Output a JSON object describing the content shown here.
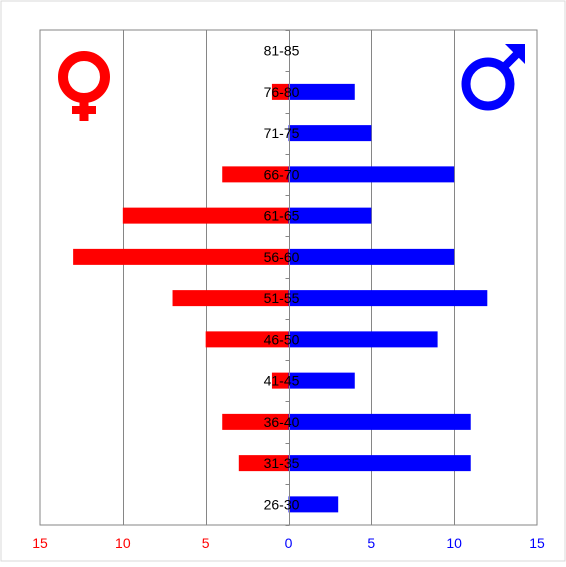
{
  "chart_data": {
    "type": "bar",
    "orientation": "horizontal",
    "layout": "population-pyramid",
    "categories": [
      "26-30",
      "31-35",
      "36-40",
      "41-45",
      "46-50",
      "51-55",
      "56-60",
      "61-65",
      "66-70",
      "71-75",
      "76-80",
      "81-85"
    ],
    "series": [
      {
        "key": "female",
        "values": [
          0,
          3,
          4,
          1,
          5,
          7,
          13,
          10,
          4,
          0,
          1,
          0
        ],
        "color": "#ff0000",
        "direction": "left"
      },
      {
        "key": "male",
        "values": [
          3,
          11,
          11,
          4,
          9,
          12,
          10,
          5,
          10,
          5,
          4,
          0
        ],
        "color": "#0000ff",
        "direction": "right"
      }
    ],
    "xlim": [
      -15,
      15
    ],
    "x_ticks": [
      {
        "value": -15,
        "label": "15",
        "color": "#ff0000"
      },
      {
        "value": -10,
        "label": "10",
        "color": "#ff0000"
      },
      {
        "value": -5,
        "label": "5",
        "color": "#ff0000"
      },
      {
        "value": 0,
        "label": "0",
        "color": "#0000ff"
      },
      {
        "value": 5,
        "label": "5",
        "color": "#0000ff"
      },
      {
        "value": 10,
        "label": "10",
        "color": "#0000ff"
      },
      {
        "value": 15,
        "label": "15",
        "color": "#0000ff"
      }
    ],
    "title": "",
    "xlabel": "",
    "ylabel": "",
    "grid": "vertical",
    "icons": [
      {
        "name": "female-symbol-icon",
        "placement": "top-left",
        "color": "#ff0000"
      },
      {
        "name": "male-symbol-icon",
        "placement": "top-right",
        "color": "#0000ff"
      }
    ]
  }
}
